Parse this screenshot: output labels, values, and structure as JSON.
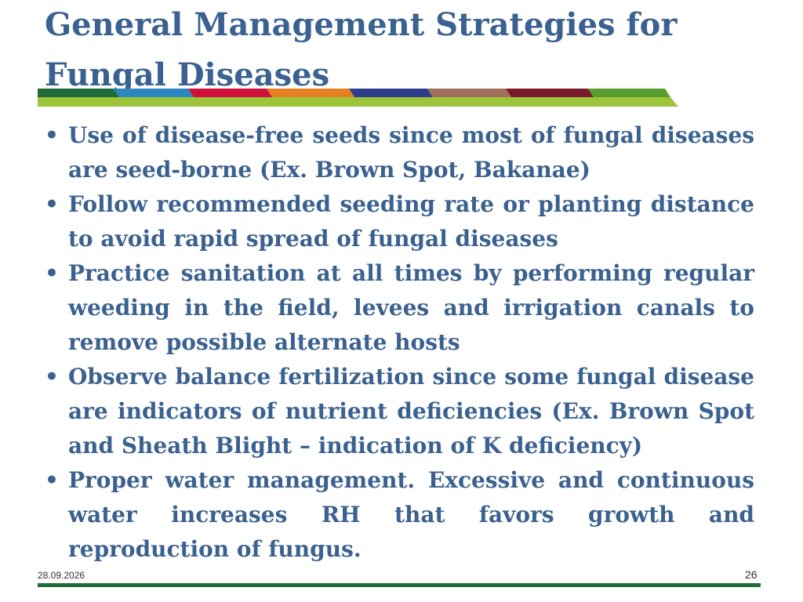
{
  "slide": {
    "title": "General Management Strategies for Fungal Diseases",
    "bullets": [
      "Use of disease-free seeds since most of fungal diseases are seed-borne (Ex. Brown Spot, Bakanae)",
      "Follow recommended seeding rate or planting distance to avoid rapid spread of fungal diseases",
      "Practice sanitation at all times by performing regular weeding in the field, levees and irrigation canals to remove possible alternate hosts",
      "Observe balance fertilization since some fungal disease are indicators of nutrient deficiencies (Ex. Brown Spot and Sheath Blight – indication of K deficiency)",
      "Proper water management. Excessive and continuous water increases RH that favors growth and reproduction of fungus."
    ],
    "bullet_symbol": "•",
    "footer": {
      "date": "28.09.2026",
      "page": "26"
    }
  },
  "colors": {
    "title": "#3A6190",
    "ribbon_top": [
      "#1F6B3A",
      "#2E86C1",
      "#D0103A",
      "#E67E22",
      "#2C3E8C",
      "#A0705A",
      "#7A1A2A",
      "#5A9E2F"
    ],
    "ribbon_bottom": "#9DC43A",
    "footer_line": "#1F6B3A"
  }
}
